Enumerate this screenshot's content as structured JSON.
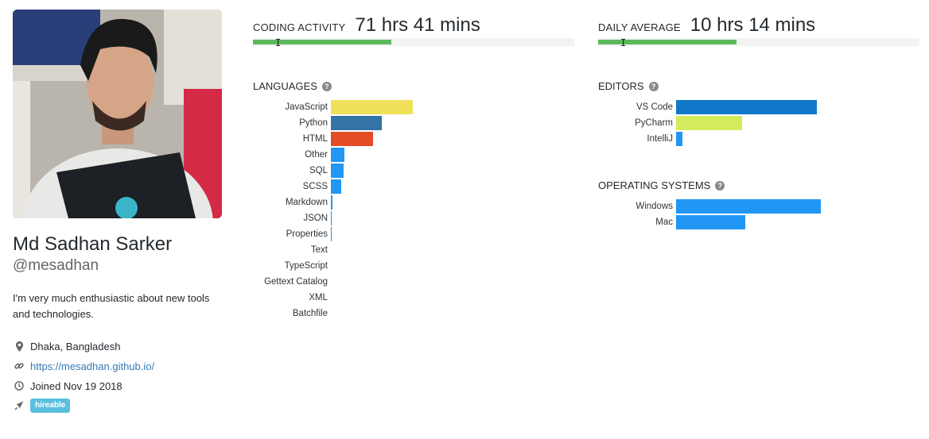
{
  "profile": {
    "name": "Md Sadhan Sarker",
    "handle": "@mesadhan",
    "bio": "I'm very much enthusiastic about new tools and technologies.",
    "location": "Dhaka, Bangladesh",
    "website": "https://mesadhan.github.io/",
    "joined": "Joined Nov 19 2018",
    "badge": "hireable",
    "icons": [
      "map-marker-icon",
      "link-icon",
      "clock-icon",
      "rocket-icon"
    ]
  },
  "coding_activity": {
    "label": "CODING ACTIVITY",
    "value": "71 hrs 41 mins",
    "progress": 0.43
  },
  "daily_average": {
    "label": "DAILY AVERAGE",
    "value": "10 hrs 14 mins",
    "progress": 0.43
  },
  "colors": {
    "progress": "#5cb85c",
    "bar_default": "#2196F3"
  },
  "chart_data": [
    {
      "type": "bar",
      "title": "LANGUAGES",
      "orientation": "horizontal",
      "categories": [
        "JavaScript",
        "Python",
        "HTML",
        "Other",
        "SQL",
        "SCSS",
        "Markdown",
        "JSON",
        "Properties",
        "Text",
        "TypeScript",
        "Gettext Catalog",
        "XML",
        "Batchfile"
      ],
      "values": [
        103,
        64,
        53,
        17,
        16,
        13,
        2,
        1,
        1,
        0,
        0,
        0,
        0,
        0
      ],
      "colors": [
        "#f1e05a",
        "#3572A5",
        "#e34c26",
        "#2196F3",
        "#2196F3",
        "#2196F3",
        "#2196F3",
        "#2196F3",
        "#2196F3",
        "#2196F3",
        "#2196F3",
        "#2196F3",
        "#2196F3",
        "#2196F3"
      ]
    },
    {
      "type": "bar",
      "title": "EDITORS",
      "orientation": "horizontal",
      "categories": [
        "VS Code",
        "PyCharm",
        "IntelliJ"
      ],
      "values": [
        177,
        83,
        8
      ],
      "colors": [
        "#0f78c8",
        "#d4ec5c",
        "#2196F3"
      ]
    },
    {
      "type": "bar",
      "title": "OPERATING SYSTEMS",
      "orientation": "horizontal",
      "categories": [
        "Windows",
        "Mac"
      ],
      "values": [
        182,
        87
      ],
      "colors": [
        "#2196F3",
        "#2196F3"
      ]
    }
  ]
}
